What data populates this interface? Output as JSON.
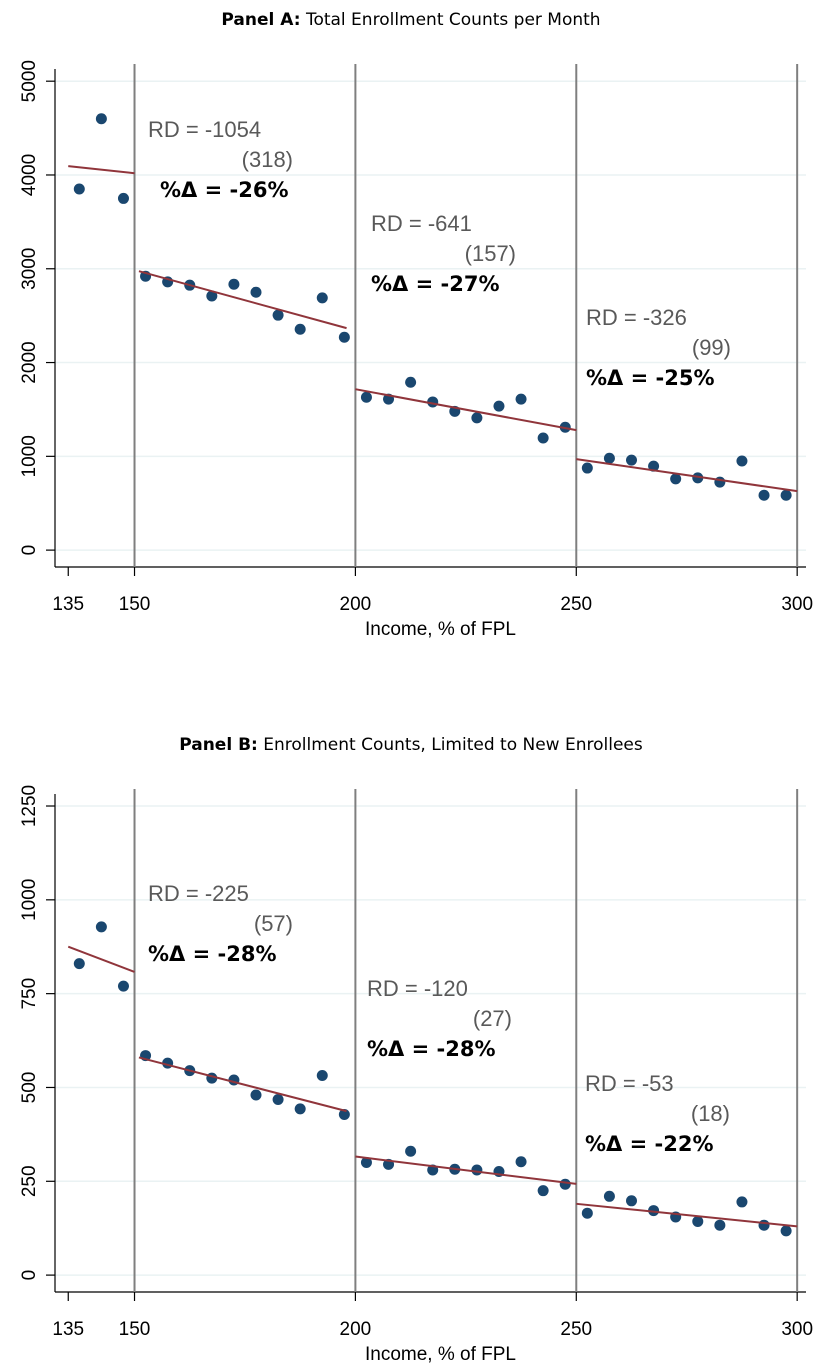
{
  "chart_data": [
    {
      "type": "scatter",
      "title_prefix": "Panel A:",
      "title": "Total Enrollment Counts per Month",
      "x_label": "Income, % of FPL",
      "xlim": [
        132,
        302
      ],
      "xticks": [
        135,
        150,
        200,
        250,
        300
      ],
      "ylim": [
        -180,
        5130
      ],
      "yticks": [
        0,
        1000,
        2000,
        3000,
        4000,
        5000
      ],
      "grid": true,
      "x": [
        137.5,
        142.5,
        147.5,
        152.5,
        157.5,
        162.5,
        167.5,
        172.5,
        177.5,
        182.5,
        187.5,
        192.5,
        197.5,
        202.5,
        207.5,
        212.5,
        217.5,
        222.5,
        227.5,
        232.5,
        237.5,
        242.5,
        247.5,
        252.5,
        257.5,
        262.5,
        267.5,
        272.5,
        277.5,
        282.5,
        287.5,
        292.5,
        297.5
      ],
      "values": [
        3850,
        4600,
        3750,
        2920,
        2860,
        2825,
        2710,
        2835,
        2750,
        2505,
        2355,
        2690,
        2270,
        1630,
        1610,
        1790,
        1580,
        1480,
        1410,
        1535,
        1610,
        1195,
        1310,
        875,
        980,
        960,
        895,
        760,
        770,
        725,
        950,
        585,
        585
      ],
      "color": "#1a476f",
      "fit_lines": [
        {
          "x": [
            135,
            150
          ],
          "values": [
            4094,
            4019
          ]
        },
        {
          "x": [
            151,
            198
          ],
          "values": [
            2974,
            2367
          ]
        },
        {
          "x": [
            200,
            250
          ],
          "values": [
            1716,
            1279
          ]
        },
        {
          "x": [
            250,
            300
          ],
          "values": [
            970,
            629
          ]
        }
      ],
      "fit_color": "#90353b",
      "cutoffs": [
        150,
        200,
        250,
        300
      ],
      "cutoff_color": "#7f7f7f",
      "annotations": [
        {
          "rd": "RD = -1054",
          "se": "(318)",
          "pct": "%Δ = -26%"
        },
        {
          "rd": "RD = -641",
          "se": "(157)",
          "pct": "%Δ = -27%"
        },
        {
          "rd": "RD = -326",
          "se": "(99)",
          "pct": "%Δ = -25%"
        }
      ]
    },
    {
      "type": "scatter",
      "title_prefix": "Panel B:",
      "title": "Enrollment Counts, Limited to New Enrollees",
      "x_label": "Income, % of FPL",
      "xlim": [
        132,
        302
      ],
      "xticks": [
        135,
        150,
        200,
        250,
        300
      ],
      "ylim": [
        -45,
        1282
      ],
      "yticks": [
        0,
        250,
        500,
        750,
        1000,
        1250
      ],
      "grid": true,
      "x": [
        137.5,
        142.5,
        147.5,
        152.5,
        157.5,
        162.5,
        167.5,
        172.5,
        177.5,
        182.5,
        187.5,
        192.5,
        197.5,
        202.5,
        207.5,
        212.5,
        217.5,
        222.5,
        227.5,
        232.5,
        237.5,
        242.5,
        247.5,
        252.5,
        257.5,
        262.5,
        267.5,
        272.5,
        277.5,
        282.5,
        287.5,
        292.5,
        297.5
      ],
      "values": [
        830,
        928,
        770,
        585,
        565,
        545,
        525,
        520,
        480,
        468,
        443,
        532,
        428,
        300,
        295,
        330,
        280,
        282,
        280,
        276,
        302,
        225,
        242,
        165,
        210,
        198,
        172,
        155,
        143,
        133,
        195,
        133,
        118
      ],
      "color": "#1a476f",
      "fit_lines": [
        {
          "x": [
            135,
            150
          ],
          "values": [
            875,
            808
          ]
        },
        {
          "x": [
            151,
            198
          ],
          "values": [
            580,
            437
          ]
        },
        {
          "x": [
            200,
            250
          ],
          "values": [
            316,
            243
          ]
        },
        {
          "x": [
            250,
            300
          ],
          "values": [
            190,
            130
          ]
        }
      ],
      "fit_color": "#90353b",
      "cutoffs": [
        150,
        200,
        250,
        300
      ],
      "cutoff_color": "#7f7f7f",
      "annotations": [
        {
          "rd": "RD = -225",
          "se": "(57)",
          "pct": "%Δ = -28%"
        },
        {
          "rd": "RD = -120",
          "se": "(27)",
          "pct": "%Δ = -28%"
        },
        {
          "rd": "RD = -53",
          "se": "(18)",
          "pct": "%Δ = -22%"
        }
      ]
    }
  ]
}
